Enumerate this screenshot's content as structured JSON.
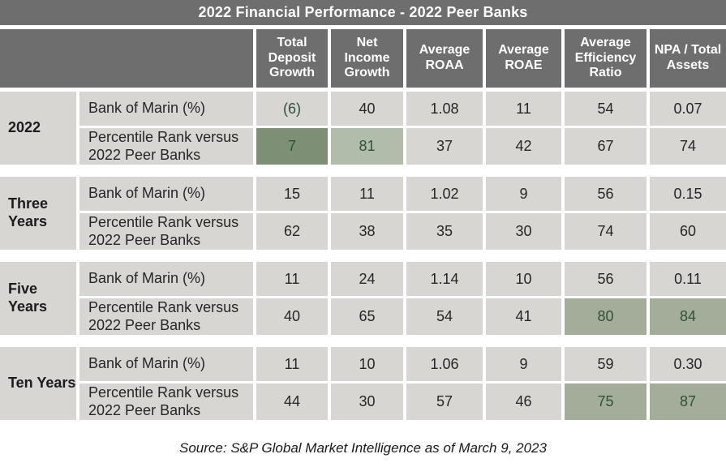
{
  "chart_data": {
    "type": "table",
    "title": "2022 Financial Performance - 2022 Peer Banks",
    "columns": [
      "Total Deposit Growth",
      "Net Income Growth",
      "Average ROAA",
      "Average ROAE",
      "Average Efficiency Ratio",
      "NPA / Total Assets"
    ],
    "row_groups": [
      {
        "period": "2022",
        "rows": [
          {
            "label": "Bank of Marin (%)",
            "values": [
              "(6)",
              "40",
              "1.08",
              "11",
              "54",
              "0.07"
            ]
          },
          {
            "label": "Percentile Rank versus 2022 Peer Banks",
            "values": [
              "7",
              "81",
              "37",
              "42",
              "67",
              "74"
            ]
          }
        ]
      },
      {
        "period": "Three Years",
        "rows": [
          {
            "label": "Bank of Marin (%)",
            "values": [
              "15",
              "11",
              "1.02",
              "9",
              "56",
              "0.15"
            ]
          },
          {
            "label": "Percentile Rank versus 2022 Peer Banks",
            "values": [
              "62",
              "38",
              "35",
              "30",
              "74",
              "60"
            ]
          }
        ]
      },
      {
        "period": "Five Years",
        "rows": [
          {
            "label": "Bank of Marin (%)",
            "values": [
              "11",
              "24",
              "1.14",
              "10",
              "56",
              "0.11"
            ]
          },
          {
            "label": "Percentile Rank versus 2022 Peer Banks",
            "values": [
              "40",
              "65",
              "54",
              "41",
              "80",
              "84"
            ]
          }
        ]
      },
      {
        "period": "Ten Years",
        "rows": [
          {
            "label": "Bank of Marin (%)",
            "values": [
              "11",
              "10",
              "1.06",
              "9",
              "59",
              "0.30"
            ]
          },
          {
            "label": "Percentile Rank versus 2022 Peer Banks",
            "values": [
              "44",
              "30",
              "57",
              "46",
              "75",
              "87"
            ]
          }
        ]
      }
    ],
    "source": "Source: S&P Global Market Intelligence as of March 9, 2023",
    "legend_note_colors": {
      "highlight_dark_green_cell": "#7d8f75",
      "highlight_light_green_cell": "#b2bcab",
      "highlight_medium_green_cell": "#a3ad99",
      "green_value_text": "#2f5138"
    }
  },
  "colors": {
    "header-bg": "#6e6e6e",
    "cell-bg": "#d8d6d3",
    "green-dark": "#7d8f75",
    "green-light": "#b2bcab",
    "green-med": "#a3ad99",
    "green-text": "#2f5138",
    "text-dark": "#262626",
    "title-text": "#ffffff"
  }
}
